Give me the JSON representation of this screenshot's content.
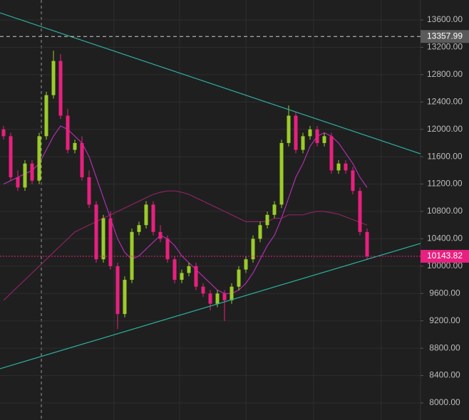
{
  "chart_data": {
    "type": "candlestick",
    "open": [
      12000,
      11900,
      11300,
      11150,
      11500,
      11250,
      11900,
      12500,
      13000,
      12200,
      11700,
      11800,
      11300,
      10900,
      10100,
      10700,
      10000,
      9300,
      9800,
      10500,
      10600,
      10900,
      10500,
      10400,
      10100,
      9800,
      9900,
      10000,
      9700,
      9600,
      9450,
      9600,
      9500,
      9700,
      9950,
      10100,
      10400,
      10600,
      10750,
      10900,
      11800,
      12200,
      11700,
      11900,
      12000,
      11800,
      11900,
      11400,
      11500,
      11400,
      11100,
      10500
    ],
    "high": [
      12050,
      11950,
      11400,
      11550,
      11550,
      11950,
      12550,
      13150,
      13100,
      12300,
      11850,
      11900,
      11400,
      10950,
      10750,
      10800,
      10050,
      9850,
      10550,
      10650,
      10950,
      10950,
      10600,
      10450,
      10150,
      9950,
      10050,
      10050,
      9750,
      9650,
      9650,
      9650,
      9750,
      10000,
      10150,
      10450,
      10650,
      10800,
      10950,
      11850,
      12350,
      12250,
      11950,
      12050,
      12050,
      11950,
      11950,
      11550,
      11550,
      11450,
      11150,
      10550
    ],
    "low": [
      11850,
      11250,
      11100,
      11100,
      11200,
      11200,
      11850,
      12450,
      12150,
      11650,
      11650,
      11250,
      10850,
      10050,
      10050,
      9950,
      9080,
      9250,
      9750,
      10450,
      10550,
      10450,
      10350,
      10050,
      9750,
      9750,
      9850,
      9650,
      9550,
      9350,
      9400,
      9200,
      9450,
      9650,
      9900,
      10050,
      10350,
      10550,
      10700,
      10850,
      11750,
      11650,
      11650,
      11850,
      11750,
      11750,
      11350,
      11350,
      11350,
      11050,
      10450,
      10100
    ],
    "close": [
      11900,
      11300,
      11150,
      11500,
      11250,
      11900,
      12500,
      13000,
      12200,
      11700,
      11800,
      11300,
      10900,
      10100,
      10700,
      10000,
      9300,
      9800,
      10500,
      10600,
      10900,
      10500,
      10400,
      10100,
      9800,
      9900,
      10000,
      9700,
      9600,
      9450,
      9600,
      9500,
      9700,
      9950,
      10100,
      10400,
      10600,
      10750,
      10900,
      11800,
      12200,
      11700,
      11900,
      12000,
      11800,
      11900,
      11400,
      11500,
      11400,
      11100,
      10500,
      10143.82
    ],
    "up_color": "#9ccc2a",
    "down_color": "#e8207f",
    "lines": [
      {
        "color": "#b02fb0",
        "values": [
          11200,
          11250,
          11300,
          11350,
          11400,
          11500,
          11700,
          11900,
          12050,
          12000,
          11900,
          11800,
          11600,
          11300,
          11000,
          10700,
          10400,
          10200,
          10100,
          10150,
          10250,
          10350,
          10450,
          10400,
          10300,
          10150,
          10050,
          9950,
          9850,
          9750,
          9650,
          9600,
          9600,
          9650,
          9750,
          9900,
          10100,
          10300,
          10450,
          10700,
          11000,
          11300,
          11500,
          11750,
          11900,
          11950,
          11900,
          11800,
          11650,
          11500,
          11300,
          11150
        ]
      },
      {
        "color": "#8a2461",
        "values": [
          9500,
          9600,
          9700,
          9800,
          9900,
          10000,
          10100,
          10200,
          10300,
          10400,
          10500,
          10550,
          10600,
          10650,
          10700,
          10750,
          10800,
          10850,
          10900,
          10950,
          11000,
          11050,
          11080,
          11100,
          11100,
          11080,
          11050,
          11000,
          10950,
          10900,
          10850,
          10800,
          10750,
          10700,
          10650,
          10650,
          10650,
          10650,
          10700,
          10700,
          10750,
          10750,
          10750,
          10780,
          10800,
          10800,
          10780,
          10760,
          10720,
          10680,
          10640,
          10600
        ]
      }
    ],
    "trendlines": [
      {
        "color": "#2bb3a0",
        "x": [
          -0.5,
          58.5
        ],
        "y": [
          13704,
          11643
        ]
      },
      {
        "color": "#2bb3a0",
        "x": [
          -0.5,
          58.5
        ],
        "y": [
          8500,
          10332
        ]
      }
    ],
    "markers": [
      {
        "value": 13357.99,
        "color": "#5a5a5a",
        "line_color": "#cfcfcf"
      },
      {
        "value": 10143.82,
        "color": "#e8207f",
        "line_color": "#e8207f"
      }
    ],
    "xlim": [
      -0.5,
      58.5
    ],
    "ylim": [
      8000,
      13600
    ],
    "yticks": [
      {
        "value": 8000,
        "label": "8000.00"
      },
      {
        "value": 8400,
        "label": "8400.00"
      },
      {
        "value": 8800,
        "label": "8800.00"
      },
      {
        "value": 9200,
        "label": "9200.00"
      },
      {
        "value": 9600,
        "label": "9600.00"
      },
      {
        "value": 10000,
        "label": "10000.00"
      },
      {
        "value": 10400,
        "label": "10400.00"
      },
      {
        "value": 10800,
        "label": "10800.00"
      },
      {
        "value": 11200,
        "label": "11200.00"
      },
      {
        "value": 11600,
        "label": "11600.00"
      },
      {
        "value": 12000,
        "label": "12000.00"
      },
      {
        "value": 12400,
        "label": "12400.00"
      },
      {
        "value": 12800,
        "label": "12800.00"
      },
      {
        "value": 13200,
        "label": "13200.00"
      },
      {
        "value": 13600,
        "label": "13600.00"
      }
    ],
    "grid": true
  }
}
